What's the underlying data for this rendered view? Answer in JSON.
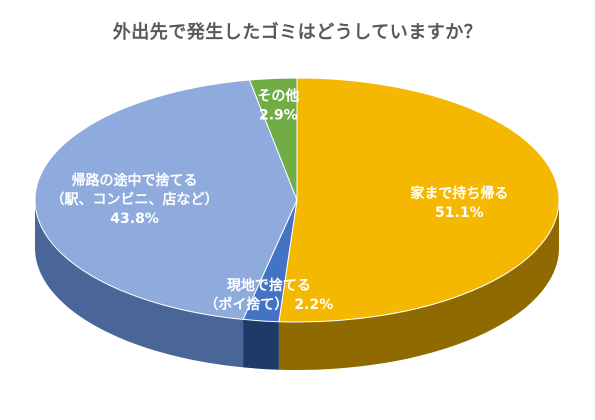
{
  "chart_data": {
    "type": "pie",
    "title": "外出先で発生したゴミはどうしていますか？",
    "slices": [
      {
        "name_lines": [
          "家まで持ち帰る"
        ],
        "value": 51.1,
        "value_label": "51.1%",
        "color": "#F5B800",
        "side_color": "#8F6A00"
      },
      {
        "name_lines": [
          "現地で捨てる",
          "（ポイ捨て）"
        ],
        "value": 2.2,
        "value_label": "2.2%",
        "color": "#4472C4",
        "side_color": "#1F3A66"
      },
      {
        "name_lines": [
          "帰路の途中で捨てる",
          "（駅、コンビニ、店など）"
        ],
        "value": 43.8,
        "value_label": "43.8%",
        "color": "#8FAADC",
        "side_color": "#4A6598"
      },
      {
        "name_lines": [
          "その他"
        ],
        "value": 2.9,
        "value_label": "2.9%",
        "color": "#70AD47",
        "side_color": "#3D6B22"
      }
    ],
    "legend": "none",
    "data_labels": "inside"
  }
}
